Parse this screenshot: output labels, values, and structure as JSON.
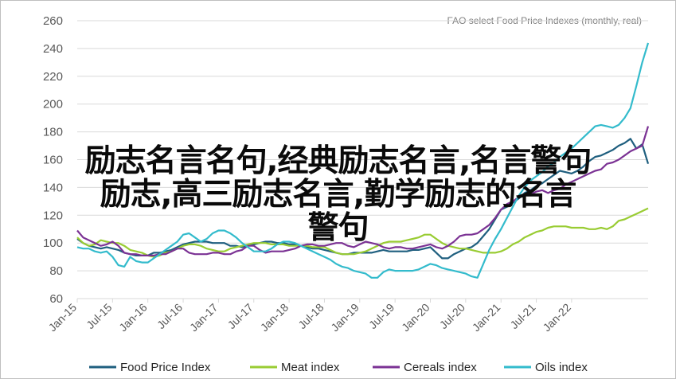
{
  "chart_data": {
    "type": "line",
    "title": "FAO select Food Price Indexes (monthly, real)",
    "xlabel": "",
    "ylabel": "",
    "ylim": [
      60,
      260
    ],
    "yticks": [
      60,
      80,
      100,
      120,
      140,
      160,
      180,
      200,
      220,
      240,
      260
    ],
    "x_tick_labels": [
      "Jan-15",
      "Jul-15",
      "Jan-16",
      "Jul-16",
      "Jan-17",
      "Jul-17",
      "Jan-18",
      "Jul-18",
      "Jan-19",
      "Jul-19",
      "Jan-20",
      "Jul-20",
      "Jan-21",
      "Jul-21",
      "Jan-22"
    ],
    "x_start": "2015-01",
    "grid": "horizontal",
    "legend_position": "bottom",
    "series": [
      {
        "name": "Food Price Index",
        "color": "#1f5f7f",
        "values": [
          103,
          100,
          98,
          97,
          96,
          97,
          96,
          95,
          93,
          92,
          91,
          91,
          91,
          93,
          93,
          94,
          95,
          97,
          99,
          100,
          101,
          101,
          101,
          100,
          100,
          100,
          98,
          98,
          97,
          98,
          99,
          100,
          101,
          101,
          100,
          100,
          99,
          99,
          98,
          97,
          96,
          96,
          95,
          94,
          93,
          92,
          92,
          93,
          93,
          93,
          93,
          94,
          95,
          94,
          94,
          94,
          94,
          95,
          95,
          96,
          97,
          93,
          89,
          89,
          92,
          94,
          96,
          97,
          100,
          105,
          110,
          117,
          124,
          126,
          129,
          132,
          136,
          138,
          141,
          143,
          146,
          149,
          152,
          151,
          150,
          152,
          155,
          159,
          162,
          163,
          165,
          167,
          170,
          172,
          175,
          168,
          171,
          157
        ]
      },
      {
        "name": "Meat index",
        "color": "#99cc33",
        "values": [
          104,
          100,
          98,
          99,
          102,
          101,
          100,
          100,
          98,
          95,
          94,
          93,
          91,
          90,
          91,
          93,
          94,
          96,
          98,
          99,
          99,
          98,
          96,
          95,
          94,
          94,
          96,
          97,
          98,
          99,
          100,
          100,
          100,
          99,
          99,
          99,
          98,
          98,
          98,
          98,
          97,
          97,
          97,
          95,
          93,
          92,
          92,
          92,
          93,
          94,
          96,
          98,
          100,
          101,
          101,
          101,
          102,
          103,
          104,
          106,
          106,
          103,
          100,
          98,
          97,
          96,
          96,
          95,
          94,
          93,
          93,
          93,
          94,
          96,
          99,
          101,
          104,
          106,
          108,
          109,
          111,
          112,
          112,
          112,
          111,
          111,
          111,
          110,
          110,
          111,
          110,
          112,
          116,
          117,
          119,
          121,
          123,
          125
        ]
      },
      {
        "name": "Cereals index",
        "color": "#7b3294",
        "values": [
          109,
          104,
          102,
          100,
          98,
          99,
          101,
          98,
          93,
          92,
          92,
          91,
          91,
          91,
          92,
          92,
          94,
          96,
          96,
          93,
          92,
          92,
          92,
          93,
          93,
          92,
          92,
          94,
          95,
          98,
          98,
          95,
          93,
          94,
          94,
          94,
          95,
          96,
          98,
          99,
          99,
          98,
          98,
          99,
          100,
          100,
          98,
          97,
          99,
          101,
          100,
          99,
          97,
          96,
          97,
          97,
          96,
          96,
          97,
          98,
          99,
          97,
          96,
          98,
          101,
          105,
          106,
          106,
          107,
          110,
          113,
          118,
          124,
          128,
          130,
          133,
          135,
          135,
          137,
          138,
          136,
          138,
          139,
          142,
          144,
          146,
          148,
          150,
          152,
          153,
          157,
          158,
          160,
          163,
          166,
          168,
          170,
          184
        ]
      },
      {
        "name": "Oils index",
        "color": "#33bbcc",
        "values": [
          97,
          96,
          96,
          94,
          93,
          94,
          90,
          84,
          83,
          90,
          87,
          86,
          86,
          89,
          92,
          95,
          98,
          101,
          106,
          107,
          104,
          101,
          103,
          107,
          109,
          109,
          107,
          104,
          100,
          97,
          94,
          94,
          94,
          96,
          99,
          101,
          101,
          100,
          98,
          96,
          94,
          92,
          90,
          88,
          85,
          83,
          82,
          80,
          79,
          78,
          75,
          75,
          79,
          81,
          80,
          80,
          80,
          80,
          81,
          83,
          85,
          84,
          82,
          81,
          80,
          79,
          78,
          76,
          75,
          85,
          95,
          103,
          110,
          118,
          126,
          134,
          140,
          145,
          148,
          151,
          155,
          158,
          162,
          165,
          168,
          172,
          176,
          180,
          184,
          185,
          184,
          183,
          185,
          190,
          197,
          213,
          230,
          244
        ]
      }
    ]
  },
  "overlay_text": {
    "line1": "励志名言名句,经典励志名言,名言警句",
    "line2": "励志,高三励志名言,勤学励志的名言",
    "line3": "警句"
  },
  "colors": {
    "grid": "#d9d9d9",
    "axis_text": "#595959",
    "overlay_text": "#0a0a0a",
    "frame": "#bfbfbf"
  }
}
